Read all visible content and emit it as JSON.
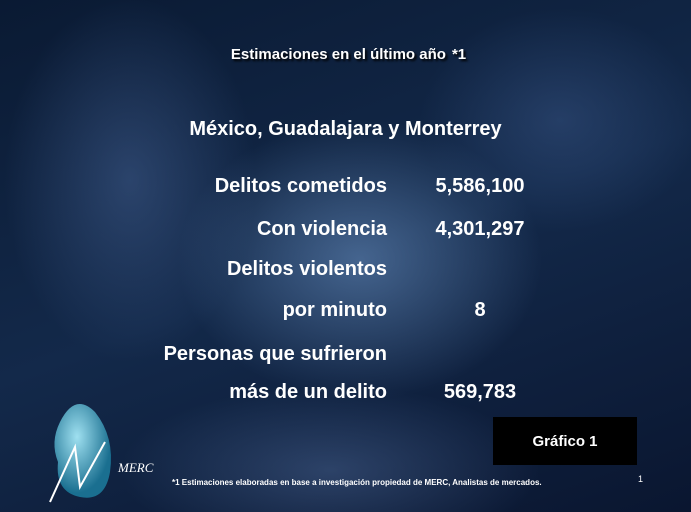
{
  "slide": {
    "title": "Estimaciones en el último año",
    "title_note": "*1",
    "subtitle": "México, Guadalajara y Monterrey",
    "rows": [
      {
        "label": [
          "Delitos cometidos"
        ],
        "value": "5,586,100"
      },
      {
        "label": [
          "Con violencia"
        ],
        "value": "4,301,297"
      },
      {
        "label": [
          "Delitos violentos",
          "por minuto"
        ],
        "value": "8"
      },
      {
        "label": [
          "Personas que sufrieron",
          "más de un delito"
        ],
        "value": "569,783"
      }
    ],
    "button": "Gráfico 1",
    "footnote": {
      "mark": "*1",
      "text": "Estimaciones elaboradas en base a investigación propiedad de MERC, Analistas de mercados."
    },
    "page_number": "1",
    "logo": "MERC"
  }
}
